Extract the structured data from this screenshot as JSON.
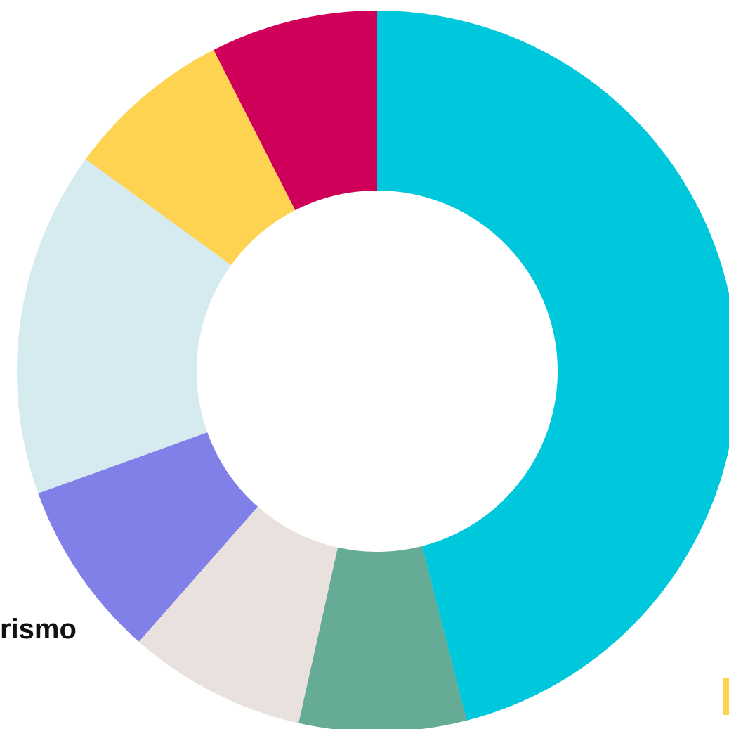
{
  "chart_data": {
    "type": "pie",
    "subtype": "donut",
    "legend": "none",
    "slices": [
      {
        "value": 46.0,
        "color": "#00C8DC"
      },
      {
        "value": 7.5,
        "color": "#66AB95"
      },
      {
        "value": 8.0,
        "color": "#E8E1DE"
      },
      {
        "value": 8.0,
        "color": "#8080E8"
      },
      {
        "value": 15.5,
        "color": "#D6EBEF"
      },
      {
        "value": 7.5,
        "color": "#FDD351"
      },
      {
        "value": 7.5,
        "color": "#CF005A"
      }
    ],
    "labels": [
      {
        "text": "rismo",
        "slice": 3
      },
      {
        "text": "",
        "slice": 0,
        "marker_color": "#FDD351"
      }
    ]
  }
}
